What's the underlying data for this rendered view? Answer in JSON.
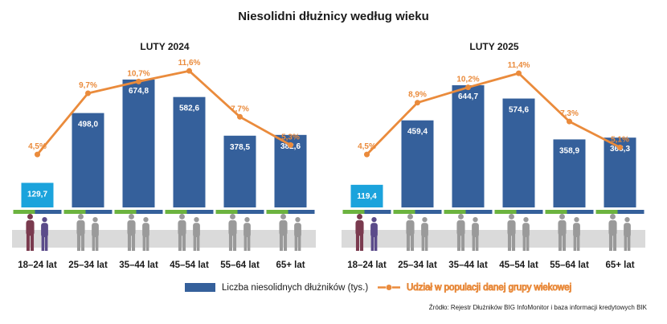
{
  "title": "Niesolidni dłużnicy według wieku",
  "colors": {
    "bar": "#35609b",
    "bar_young": "#1ba3dc",
    "line": "#ea8b3c",
    "ground": "#d4d4d4",
    "person": "#9a9a9a",
    "stripe_green": "#6cb33f"
  },
  "legend": {
    "bars": "Liczba niesolidnych dłużników (tys.)",
    "line": "Udział w populacji danej grupy wiekowej"
  },
  "source": "Źródło: Rejestr Dłużników BIG InfoMonitor i baza informacji kredytowych BIK",
  "chart_data": [
    {
      "type": "bar",
      "title": "LUTY 2024",
      "categories": [
        "18–24 lat",
        "25–34 lat",
        "35–44 lat",
        "45–54 lat",
        "55–64 lat",
        "65+ lat"
      ],
      "series": [
        {
          "name": "Liczba niesolidnych dłużników (tys.)",
          "values": [
            129.7,
            498.0,
            674.8,
            582.6,
            378.5,
            382.6
          ],
          "labels": [
            "129,7",
            "498,0",
            "674,8",
            "582,6",
            "378,5",
            "382,6"
          ]
        },
        {
          "name": "Udział w populacji danej grupy wiekowej",
          "type": "line",
          "values": [
            4.5,
            9.7,
            10.7,
            11.6,
            7.7,
            5.3
          ],
          "labels": [
            "4,5%",
            "9,7%",
            "10,7%",
            "11,6%",
            "7,7%",
            "5,3%"
          ]
        }
      ],
      "ylim": [
        0,
        700
      ],
      "ylim_line": [
        0,
        12.5
      ],
      "grid": false
    },
    {
      "type": "bar",
      "title": "LUTY 2025",
      "categories": [
        "18–24 lat",
        "25–34 lat",
        "35–44 lat",
        "45–54 lat",
        "55–64 lat",
        "65+ lat"
      ],
      "series": [
        {
          "name": "Liczba niesolidnych dłużników (tys.)",
          "values": [
            119.4,
            459.4,
            644.7,
            574.6,
            358.9,
            368.3
          ],
          "labels": [
            "119,4",
            "459,4",
            "644,7",
            "574,6",
            "358,9",
            "368,3"
          ]
        },
        {
          "name": "Udział w populacji danej grupy wiekowej",
          "type": "line",
          "values": [
            4.5,
            8.9,
            10.2,
            11.4,
            7.3,
            5.1
          ],
          "labels": [
            "4,5%",
            "8,9%",
            "10,2%",
            "11,4%",
            "7,3%",
            "5,1%"
          ]
        }
      ],
      "ylim": [
        0,
        700
      ],
      "ylim_line": [
        0,
        12.5
      ],
      "grid": false
    }
  ]
}
